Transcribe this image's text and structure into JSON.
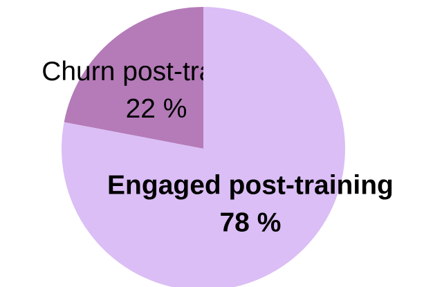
{
  "chart_data": {
    "type": "pie",
    "categories": [
      "Churn post-training",
      "Engaged post-training"
    ],
    "values": [
      22,
      78
    ],
    "value_labels": [
      "22 %",
      "78 %"
    ],
    "colors": [
      "#b47bb8",
      "#dbbef5"
    ],
    "startangle": 90,
    "counterclock": true
  }
}
